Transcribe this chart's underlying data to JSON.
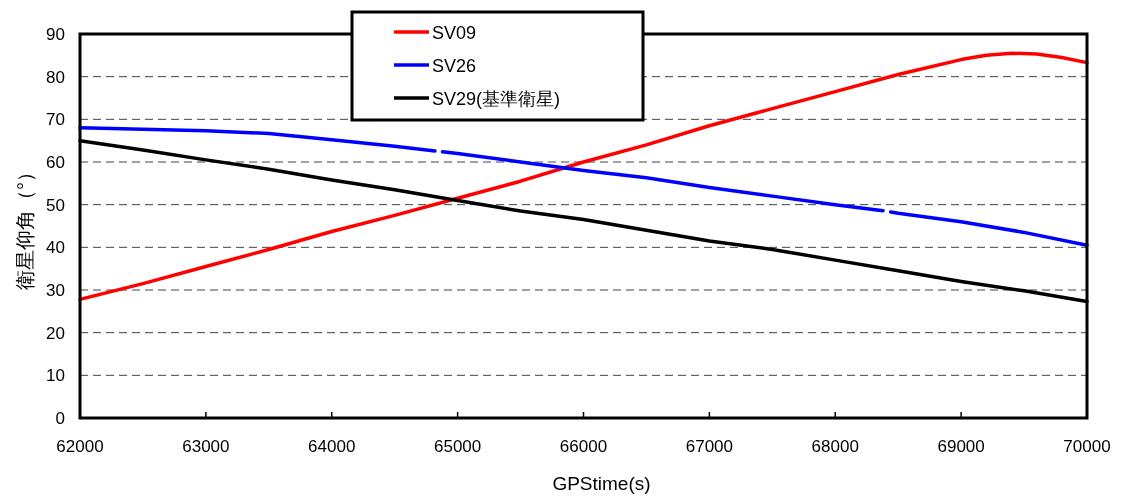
{
  "chart_data": {
    "type": "line",
    "xlabel": "GPStime(s)",
    "ylabel": "衛星仰角（°）",
    "xlim": [
      62000,
      70000
    ],
    "xticks": [
      62000,
      63000,
      64000,
      65000,
      66000,
      67000,
      68000,
      69000,
      70000
    ],
    "ylim": [
      0,
      90
    ],
    "yticks": [
      0,
      10,
      20,
      30,
      40,
      50,
      60,
      70,
      80,
      90
    ],
    "grid": "y",
    "legend": "top",
    "marker": "none",
    "line_style": "solid",
    "series": [
      {
        "name": "SV09",
        "color": "#ff0000",
        "x": [
          62000,
          62500,
          63000,
          63500,
          64000,
          64500,
          65000,
          65500,
          66000,
          66500,
          67000,
          67500,
          68000,
          68500,
          69000,
          69200,
          69400,
          69600,
          69800,
          70000
        ],
        "values": [
          27.8,
          31.5,
          35.5,
          39.5,
          43.7,
          47.5,
          51.5,
          55.5,
          60,
          64,
          68.5,
          72.5,
          76.5,
          80.5,
          84,
          85,
          85.5,
          85.3,
          84.5,
          83.3
        ]
      },
      {
        "name": "SV26",
        "color": "#0000ff",
        "x": [
          62000,
          62500,
          63000,
          63500,
          64000,
          64500,
          64820,
          64850,
          64880,
          65000,
          65500,
          66000,
          66500,
          67000,
          67500,
          68000,
          68380,
          68410,
          68440,
          68500,
          69000,
          69500,
          70000
        ],
        "values": [
          68,
          67.7,
          67.3,
          66.7,
          65.2,
          63.7,
          62.6,
          null,
          62.4,
          62,
          60,
          58,
          56.3,
          54,
          52,
          50,
          48.6,
          null,
          48.3,
          48,
          46,
          43.5,
          40.5
        ]
      },
      {
        "name": "SV29(基準衛星)",
        "color": "#000000",
        "x": [
          62000,
          62500,
          63000,
          63500,
          64000,
          64500,
          65000,
          65500,
          66000,
          66500,
          67000,
          67500,
          68000,
          68500,
          69000,
          69500,
          70000
        ],
        "values": [
          65,
          62.8,
          60.5,
          58.3,
          55.8,
          53.5,
          51,
          48.5,
          46.5,
          44,
          41.5,
          39.5,
          37,
          34.5,
          32,
          29.8,
          27.3
        ]
      }
    ]
  }
}
